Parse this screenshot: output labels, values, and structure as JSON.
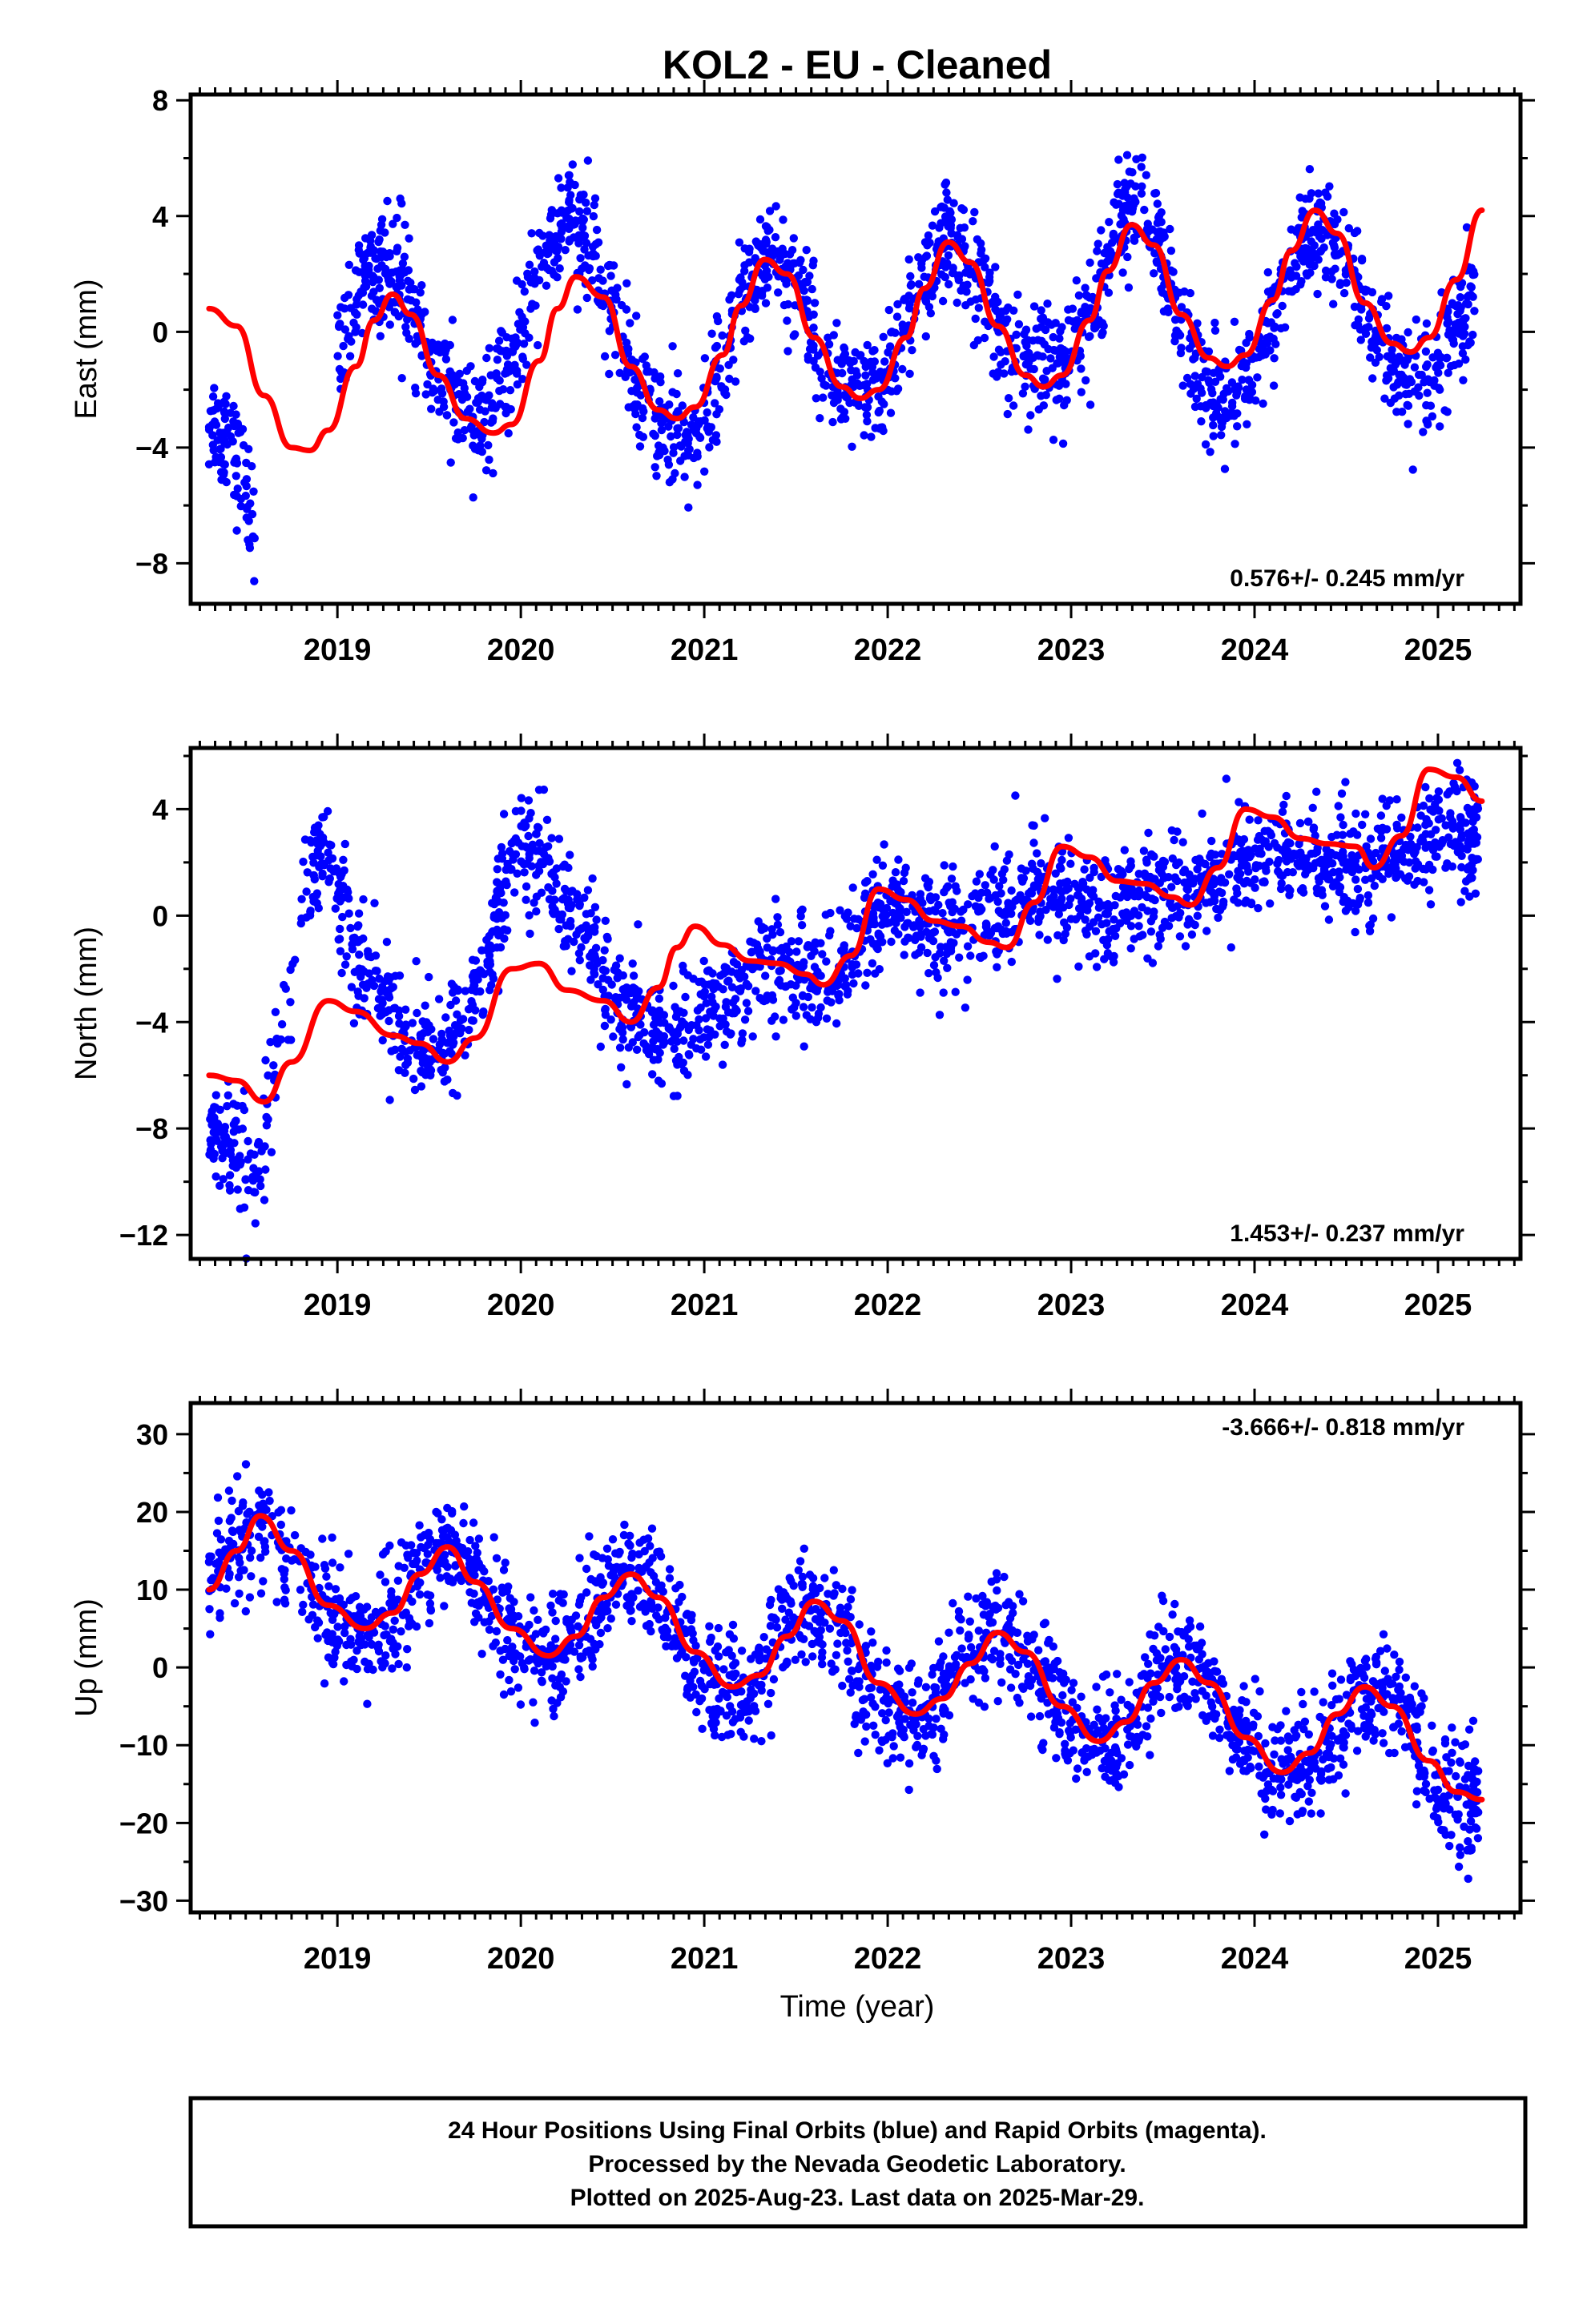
{
  "title": "KOL2  - EU - Cleaned",
  "x_axis_label": "Time (year)",
  "footer": {
    "lines": [
      "24 Hour Positions Using Final Orbits (blue) and Rapid Orbits (magenta).",
      "Processed by the Nevada Geodetic Laboratory.",
      "Plotted on 2025-Aug-23. Last data on 2025-Mar-29."
    ]
  },
  "colors": {
    "points": "#0000ff",
    "model": "#ff0000",
    "frame": "#000000"
  },
  "chart_data": [
    {
      "type": "scatter",
      "title": "",
      "xlabel": "",
      "ylabel": "East (mm)",
      "xlim": [
        2018.2,
        2025.45
      ],
      "ylim": [
        -9.4,
        8.2
      ],
      "x_ticks": [
        2019,
        2020,
        2021,
        2022,
        2023,
        2024,
        2025
      ],
      "y_ticks": [
        -8,
        -4,
        0,
        4,
        8
      ],
      "rate_label": "0.576+/- 0.245 mm/yr",
      "rate_position": "bottom-right",
      "grid": false,
      "series": [
        {
          "values": {
            "x": [
              2018.3,
              2018.4,
              2018.55,
              2018.7,
              2018.85,
              2019.0,
              2019.15,
              2019.25,
              2019.35,
              2019.5,
              2019.65,
              2019.8,
              2019.95,
              2020.1,
              2020.25,
              2020.35,
              2020.5,
              2020.65,
              2020.8,
              2020.95,
              2021.1,
              2021.25,
              2021.35,
              2021.5,
              2021.65,
              2021.8,
              2021.95,
              2022.1,
              2022.25,
              2022.35,
              2022.5,
              2022.65,
              2022.8,
              2022.95,
              2023.1,
              2023.25,
              2023.35,
              2023.5,
              2023.65,
              2023.8,
              2023.95,
              2024.1,
              2024.25,
              2024.35,
              2024.5,
              2024.65,
              2024.8,
              2024.95,
              2025.1,
              2025.2
            ],
            "y": [
              -3.0,
              -3.5,
              -6.5,
              null,
              null,
              -1.5,
              2.5,
              2.0,
              1.8,
              -1.0,
              -2.5,
              -3.2,
              -1.2,
              2.2,
              4.0,
              3.2,
              0.8,
              -2.2,
              -3.5,
              -3.8,
              -1.2,
              1.8,
              2.8,
              1.8,
              -0.8,
              -2.2,
              -2.4,
              0.2,
              2.4,
              3.2,
              1.8,
              -0.6,
              -1.2,
              -1.2,
              0.6,
              3.6,
              4.8,
              2.4,
              -0.6,
              -2.4,
              -2.2,
              0.4,
              2.8,
              3.6,
              2.4,
              0.0,
              -1.6,
              -2.2,
              0.0,
              1.0
            ]
          }
        },
        {
          "values": {
            "x": [
              2018.3,
              2018.45,
              2018.6,
              2018.75,
              2018.85,
              2018.95,
              2019.1,
              2019.2,
              2019.3,
              2019.4,
              2019.55,
              2019.7,
              2019.85,
              2019.95,
              2020.1,
              2020.2,
              2020.3,
              2020.45,
              2020.6,
              2020.75,
              2020.85,
              2020.95,
              2021.1,
              2021.2,
              2021.33,
              2021.45,
              2021.6,
              2021.75,
              2021.85,
              2021.95,
              2022.1,
              2022.2,
              2022.33,
              2022.45,
              2022.6,
              2022.75,
              2022.85,
              2022.95,
              2023.1,
              2023.2,
              2023.33,
              2023.45,
              2023.6,
              2023.75,
              2023.85,
              2023.95,
              2024.1,
              2024.2,
              2024.33,
              2024.45,
              2024.6,
              2024.75,
              2024.85,
              2024.95,
              2025.1,
              2025.24
            ],
            "y": [
              0.8,
              0.2,
              -2.2,
              -4.0,
              -4.1,
              -3.4,
              -1.2,
              0.4,
              1.3,
              0.6,
              -1.5,
              -3.0,
              -3.5,
              -3.2,
              -1.0,
              0.8,
              1.9,
              1.2,
              -1.2,
              -2.7,
              -3.0,
              -2.6,
              -0.8,
              0.9,
              2.5,
              2.0,
              -0.2,
              -1.9,
              -2.3,
              -2.0,
              -0.2,
              1.5,
              3.1,
              2.4,
              0.2,
              -1.5,
              -1.9,
              -1.5,
              0.4,
              2.1,
              3.7,
              3.0,
              0.6,
              -0.9,
              -1.2,
              -0.8,
              1.1,
              2.8,
              4.2,
              3.4,
              1.0,
              -0.4,
              -0.7,
              -0.2,
              1.8,
              4.2
            ]
          }
        }
      ]
    },
    {
      "type": "scatter",
      "title": "",
      "xlabel": "",
      "ylabel": "North (mm)",
      "xlim": [
        2018.2,
        2025.45
      ],
      "ylim": [
        -12.9,
        6.3
      ],
      "x_ticks": [
        2019,
        2020,
        2021,
        2022,
        2023,
        2024,
        2025
      ],
      "y_ticks": [
        -12,
        -8,
        -4,
        0,
        4
      ],
      "rate_label": "1.453+/- 0.237 mm/yr",
      "rate_position": "bottom-right",
      "grid": false,
      "series": [
        {
          "values": {
            "x": [
              2018.3,
              2018.4,
              2018.55,
              2018.85,
              2018.95,
              2019.1,
              2019.25,
              2019.4,
              2019.55,
              2019.7,
              2019.85,
              2019.95,
              2020.1,
              2020.25,
              2020.4,
              2020.55,
              2020.7,
              2020.85,
              2021.0,
              2021.15,
              2021.3,
              2021.45,
              2021.6,
              2021.75,
              2021.9,
              2022.0,
              2022.15,
              2022.3,
              2022.45,
              2022.6,
              2022.75,
              2022.9,
              2023.05,
              2023.2,
              2023.35,
              2023.5,
              2023.65,
              2023.8,
              2023.95,
              2024.1,
              2024.25,
              2024.4,
              2024.55,
              2024.7,
              2024.85,
              2025.0,
              2025.15,
              2025.22
            ],
            "y": [
              -8.5,
              -8.0,
              -10.0,
              2.0,
              2.5,
              -1.5,
              -3.0,
              -4.5,
              -5.0,
              -4.0,
              -1.0,
              2.5,
              2.5,
              0.5,
              -1.5,
              -3.5,
              -4.5,
              -4.5,
              -3.5,
              -3.0,
              -2.0,
              -2.0,
              -2.5,
              -2.0,
              -0.5,
              0.5,
              -0.2,
              -0.5,
              -0.2,
              0.0,
              0.8,
              1.0,
              0.5,
              0.0,
              0.8,
              1.0,
              1.0,
              1.5,
              2.0,
              2.0,
              2.2,
              2.0,
              1.8,
              2.0,
              2.5,
              3.0,
              3.0,
              2.8
            ]
          }
        },
        {
          "values": {
            "x": [
              2018.3,
              2018.45,
              2018.6,
              2018.75,
              2018.95,
              2019.1,
              2019.3,
              2019.45,
              2019.6,
              2019.75,
              2019.95,
              2020.1,
              2020.25,
              2020.45,
              2020.6,
              2020.75,
              2020.85,
              2020.95,
              2021.1,
              2021.25,
              2021.4,
              2021.55,
              2021.65,
              2021.8,
              2021.95,
              2022.1,
              2022.25,
              2022.4,
              2022.55,
              2022.65,
              2022.8,
              2022.95,
              2023.1,
              2023.25,
              2023.4,
              2023.55,
              2023.65,
              2023.8,
              2023.95,
              2024.1,
              2024.25,
              2024.4,
              2024.55,
              2024.65,
              2024.8,
              2024.95,
              2025.1,
              2025.24
            ],
            "y": [
              -6.0,
              -6.2,
              -7.0,
              -5.5,
              -3.2,
              -3.6,
              -4.5,
              -4.8,
              -5.5,
              -4.6,
              -2.0,
              -1.8,
              -2.8,
              -3.2,
              -4.0,
              -2.7,
              -1.2,
              -0.4,
              -1.1,
              -1.7,
              -1.8,
              -2.2,
              -2.6,
              -1.5,
              1.0,
              0.6,
              -0.2,
              -0.4,
              -1.0,
              -1.2,
              0.5,
              2.6,
              2.2,
              1.3,
              1.2,
              0.7,
              0.4,
              1.8,
              4.0,
              3.7,
              2.9,
              2.7,
              2.6,
              1.8,
              3.0,
              5.5,
              5.2,
              4.3
            ]
          }
        }
      ]
    },
    {
      "type": "scatter",
      "title": "",
      "xlabel": "Time (year)",
      "ylabel": "Up (mm)",
      "xlim": [
        2018.2,
        2025.45
      ],
      "ylim": [
        -31.5,
        34
      ],
      "x_ticks": [
        2019,
        2020,
        2021,
        2022,
        2023,
        2024,
        2025
      ],
      "y_ticks": [
        -30,
        -20,
        -10,
        0,
        10,
        20,
        30
      ],
      "rate_label": "-3.666+/- 0.818 mm/yr",
      "rate_position": "top-right",
      "grid": false,
      "series": [
        {
          "values": {
            "x": [
              2018.3,
              2018.45,
              2018.6,
              2018.85,
              2019.0,
              2019.15,
              2019.3,
              2019.45,
              2019.6,
              2019.75,
              2019.9,
              2020.05,
              2020.2,
              2020.35,
              2020.5,
              2020.65,
              2020.8,
              2020.95,
              2021.1,
              2021.25,
              2021.4,
              2021.55,
              2021.7,
              2021.85,
              2022.0,
              2022.15,
              2022.3,
              2022.45,
              2022.6,
              2022.75,
              2022.9,
              2023.05,
              2023.2,
              2023.35,
              2023.5,
              2023.65,
              2023.8,
              2023.95,
              2024.1,
              2024.25,
              2024.4,
              2024.55,
              2024.7,
              2024.85,
              2025.0,
              2025.15,
              2025.22
            ],
            "y": [
              11,
              16,
              19,
              10,
              6,
              4,
              6,
              12,
              16,
              12,
              6,
              1,
              2,
              6,
              11,
              12,
              7,
              0,
              -3,
              -2,
              3,
              8,
              6,
              -1,
              -6,
              -7,
              -4,
              2,
              5,
              2,
              -4,
              -9,
              -10,
              -6,
              0,
              1,
              -3,
              -9,
              -13,
              -14,
              -10,
              -4,
              -3,
              -8,
              -15,
              -17,
              -17
            ]
          }
        },
        {
          "values": {
            "x": [
              2018.3,
              2018.45,
              2018.58,
              2018.75,
              2018.95,
              2019.15,
              2019.3,
              2019.45,
              2019.6,
              2019.75,
              2019.95,
              2020.15,
              2020.3,
              2020.45,
              2020.6,
              2020.75,
              2020.95,
              2021.15,
              2021.3,
              2021.45,
              2021.6,
              2021.75,
              2021.95,
              2022.15,
              2022.3,
              2022.45,
              2022.6,
              2022.75,
              2022.95,
              2023.15,
              2023.3,
              2023.45,
              2023.6,
              2023.75,
              2023.95,
              2024.15,
              2024.3,
              2024.45,
              2024.6,
              2024.75,
              2024.95,
              2025.1,
              2025.24
            ],
            "y": [
              10,
              15,
              19.5,
              15,
              8,
              5,
              7,
              12,
              15.5,
              11,
              5,
              1.5,
              4,
              9,
              12,
              9,
              2,
              -2.5,
              -1,
              4,
              8.5,
              6,
              -2,
              -6,
              -4,
              0.5,
              4.5,
              2,
              -5,
              -9.5,
              -7,
              -2,
              1,
              -2,
              -9,
              -13.5,
              -11,
              -6,
              -2.5,
              -5,
              -12,
              -16,
              -17
            ]
          }
        }
      ]
    }
  ]
}
